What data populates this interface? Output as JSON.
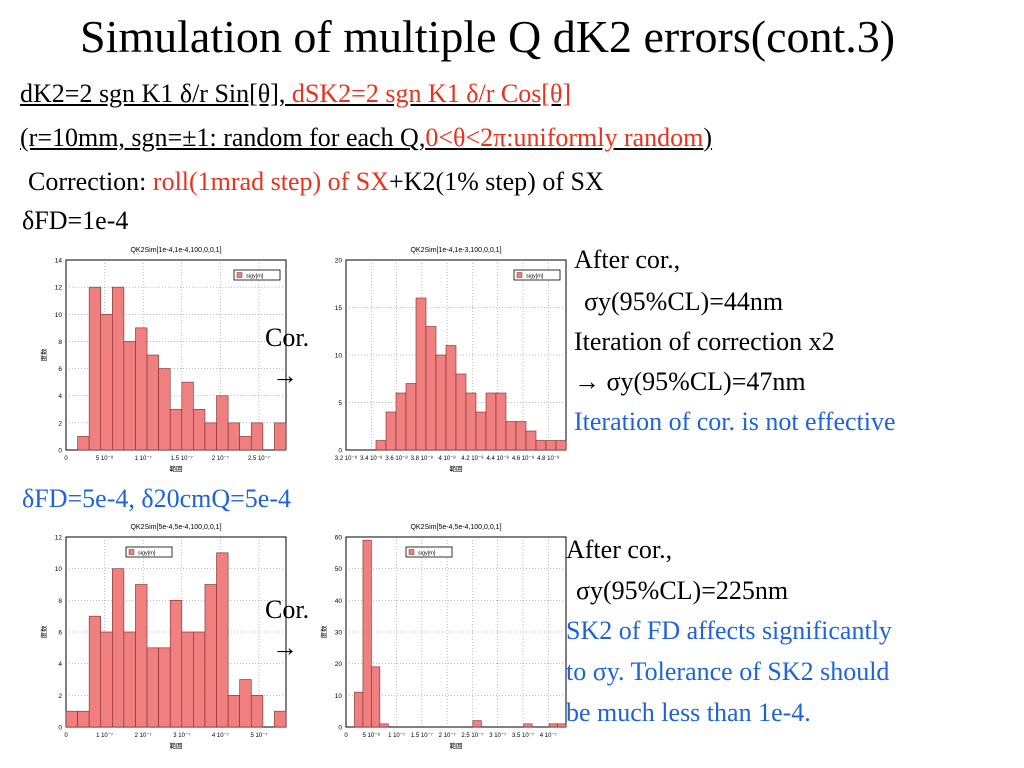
{
  "title": "Simulation of multiple Q dK2 errors(cont.3)",
  "formula": {
    "part1": "dK2=2 sgn K1 δ/r Sin[θ],",
    "part2": "dSK2=2 sgn K1 δ/r Cos[θ]"
  },
  "params": {
    "part1": "(r=10mm, sgn=±1: random for each Q,",
    "part2": "0<θ<2π:uniformly random",
    "part3": ")"
  },
  "correction": {
    "label": "Correction: ",
    "part_red": "roll(1mrad step) of SX",
    "part_black": "+K2(1% step) of SX"
  },
  "section1": {
    "label": "δFD=1e-4",
    "arrow_label": "Cor.",
    "arrow_symbol": "→",
    "notes": {
      "line1": "After cor.,",
      "line2": "σy(95%CL)=44nm",
      "line3": "Iteration of correction x2",
      "line4": "→ σy(95%CL)=47nm",
      "line5": "Iteration of cor. is not effective"
    }
  },
  "section2": {
    "label": "δFD=5e-4, δ20cmQ=5e-4",
    "arrow_label": "Cor.",
    "arrow_symbol": "→",
    "notes": {
      "line1": "After cor.,",
      "line2": "σy(95%CL)=225nm",
      "line3": "SK2 of FD affects significantly",
      "line4": "to σy. Tolerance of SK2 should",
      "line5": "be much less than 1e-4."
    }
  },
  "colors": {
    "bar_fill": "#f08080",
    "bar_stroke": "#7a2a2a",
    "accent_red": "#e8321e",
    "accent_blue": "#1f63d8"
  },
  "chart_data": [
    {
      "type": "bar",
      "title": "QK2Sim[1e-4,1e-4,100,0,0,1]",
      "xlabel": "範囲",
      "ylabel": "度数",
      "legend": "sigy[m]",
      "legend_position": "top-right",
      "ylim": [
        0,
        14
      ],
      "yticks": [
        0,
        2,
        4,
        6,
        8,
        10,
        12,
        14
      ],
      "xticks": [
        "0",
        "5 10⁻⁸",
        "1 10⁻⁷",
        "1.5 10⁻⁷",
        "2 10⁻⁷",
        "2.5 10⁻⁷"
      ],
      "values": [
        0,
        1,
        12,
        10,
        12,
        8,
        9,
        7,
        6,
        3,
        5,
        3,
        2,
        4,
        2,
        1,
        2,
        0,
        2
      ],
      "grid": true
    },
    {
      "type": "bar",
      "title": "QK2Sim[1e-4,1e-3,100,0,0,1]",
      "xlabel": "範囲",
      "ylabel": "",
      "legend": "sigy[m]",
      "legend_position": "top-right",
      "ylim": [
        0,
        20
      ],
      "yticks": [
        0,
        5,
        10,
        15,
        20
      ],
      "xticks": [
        "3.2 10⁻⁸",
        "3.4 10⁻⁸",
        "3.6 10⁻⁸",
        "3.8 10⁻⁸",
        "4 10⁻⁸",
        "4.2 10⁻⁸",
        "4.4 10⁻⁸",
        "4.6 10⁻⁸",
        "4.8 10⁻⁸"
      ],
      "values": [
        0,
        0,
        0,
        1,
        4,
        6,
        7,
        16,
        13,
        10,
        11,
        8,
        6,
        4,
        6,
        6,
        3,
        3,
        2,
        1,
        1,
        1
      ],
      "grid": true
    },
    {
      "type": "bar",
      "title": "QK2Sim[5e-4,5e-4,100,0,0,1]",
      "xlabel": "範囲",
      "ylabel": "度数",
      "legend": "sigy[m]",
      "legend_position": "top-left",
      "ylim": [
        0,
        12
      ],
      "yticks": [
        0,
        2,
        4,
        6,
        8,
        10,
        12
      ],
      "xticks": [
        "0",
        "1 10⁻⁷",
        "2 10⁻⁷",
        "3 10⁻⁷",
        "4 10⁻⁷",
        "5 10⁻⁷"
      ],
      "values": [
        1,
        1,
        7,
        6,
        10,
        6,
        9,
        5,
        5,
        8,
        6,
        6,
        9,
        11,
        2,
        3,
        2,
        0,
        1
      ],
      "grid": true
    },
    {
      "type": "bar",
      "title": "QK2Sim[5e-4,5e-4,100,0,0,1]",
      "xlabel": "範囲",
      "ylabel": "度数",
      "legend": "sigy[m]",
      "legend_position": "top-left",
      "ylim": [
        0,
        60
      ],
      "yticks": [
        0,
        10,
        20,
        30,
        40,
        50,
        60
      ],
      "xticks": [
        "0",
        "5 10⁻⁸",
        "1 10⁻⁷",
        "1.5 10⁻⁷",
        "2 10⁻⁷",
        "2.5 10⁻⁷",
        "3 10⁻⁷",
        "3.5 10⁻⁷",
        "4 10⁻⁷"
      ],
      "values": [
        0,
        11,
        59,
        19,
        1,
        0,
        0,
        0,
        0,
        0,
        0,
        0,
        0,
        0,
        0,
        2,
        0,
        0,
        0,
        0,
        0,
        1,
        0,
        0,
        1,
        1
      ],
      "grid": true
    }
  ]
}
